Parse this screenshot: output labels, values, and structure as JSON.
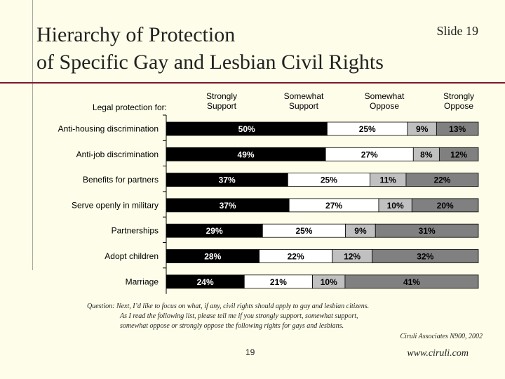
{
  "slide": {
    "title_line1": "Hierarchy of Protection",
    "title_line2": "of Specific Gay and Lesbian Civil Rights",
    "slide_label": "Slide 19",
    "question_lines": [
      "Question:  Next, I’d like to focus on what, if any, civil rights should apply to gay and lesbian citizens.",
      "As I read the following list, please tell me if you strongly support, somewhat support,",
      "somewhat oppose or strongly oppose the following rights for gays and lesbians."
    ],
    "source": "Ciruli Associates N900, 2002",
    "page_number": "19",
    "website": "www.ciruli.com"
  },
  "colors": {
    "strongly_support": "#000000",
    "somewhat_support": "#ffffff",
    "somewhat_oppose": "#c0c0c0",
    "strongly_oppose": "#808080"
  },
  "chart_data": {
    "type": "bar",
    "orientation": "horizontal-stacked-100",
    "row_header": "Legal protection for:",
    "categories": [
      "Anti-housing discrimination",
      "Anti-job discrimination",
      "Benefits for partners",
      "Serve openly in military",
      "Partnerships",
      "Adopt children",
      "Marriage"
    ],
    "series": [
      {
        "name": "Strongly Support",
        "header_lines": [
          "Strongly",
          "Support"
        ],
        "values": [
          50,
          49,
          37,
          37,
          29,
          28,
          24
        ]
      },
      {
        "name": "Somewhat Support",
        "header_lines": [
          "Somewhat",
          "Support"
        ],
        "values": [
          25,
          27,
          25,
          27,
          25,
          22,
          21
        ]
      },
      {
        "name": "Somewhat Oppose",
        "header_lines": [
          "Somewhat",
          "Oppose"
        ],
        "values": [
          9,
          8,
          11,
          10,
          9,
          12,
          10
        ]
      },
      {
        "name": "Strongly Oppose",
        "header_lines": [
          "Strongly",
          "Oppose"
        ],
        "values": [
          13,
          12,
          22,
          20,
          31,
          32,
          41
        ]
      }
    ],
    "value_suffix": "%"
  }
}
